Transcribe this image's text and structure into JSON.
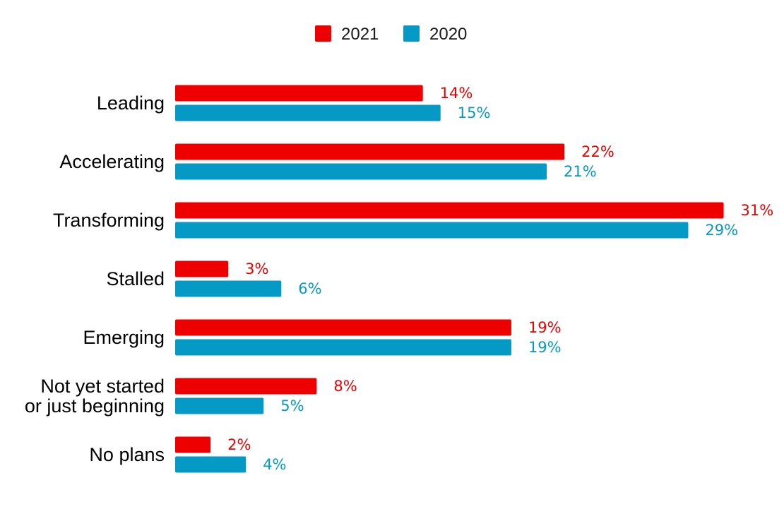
{
  "chart_data": {
    "type": "bar",
    "orientation": "horizontal",
    "title": "",
    "xlabel": "",
    "ylabel": "",
    "xlim": [
      0,
      31
    ],
    "grid": false,
    "legend_position": "top-center",
    "categories": [
      "Leading",
      "Accelerating",
      "Transforming",
      "Stalled",
      "Emerging",
      "Not yet started or just beginning",
      "No plans"
    ],
    "category_lines": [
      [
        "Leading"
      ],
      [
        "Accelerating"
      ],
      [
        "Transforming"
      ],
      [
        "Stalled"
      ],
      [
        "Emerging"
      ],
      [
        "Not yet started",
        "or just beginning"
      ],
      [
        "No plans"
      ]
    ],
    "series": [
      {
        "name": "2021",
        "color": "#ee0000",
        "values": [
          14,
          22,
          31,
          3,
          19,
          8,
          2
        ],
        "labels": [
          "14%",
          "22%",
          "31%",
          "3%",
          "19%",
          "8%",
          "2%"
        ]
      },
      {
        "name": "2020",
        "color": "#0599c6",
        "values": [
          15,
          21,
          29,
          6,
          19,
          5,
          4
        ],
        "labels": [
          "15%",
          "21%",
          "29%",
          "6%",
          "19%",
          "5%",
          "4%"
        ]
      }
    ]
  }
}
